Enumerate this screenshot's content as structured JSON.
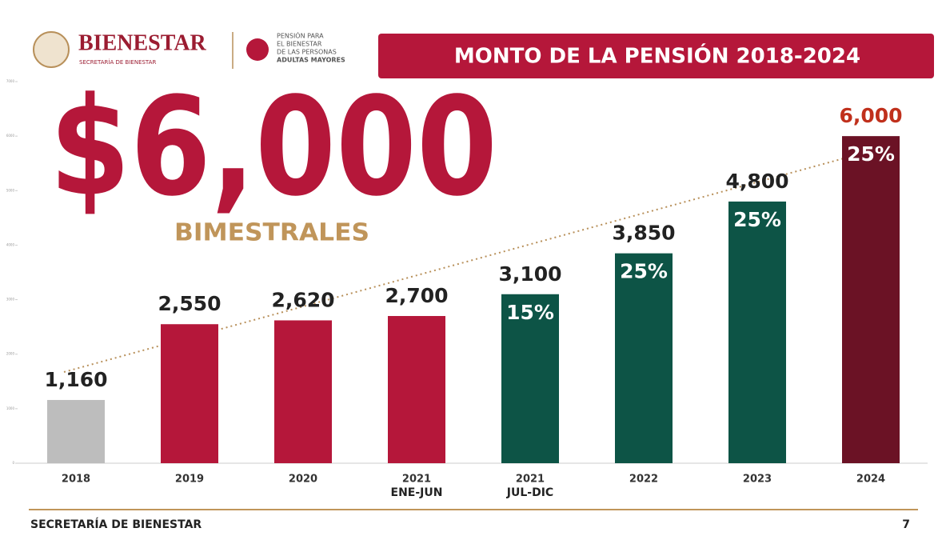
{
  "header": {
    "brand": "BIENESTAR",
    "brand_sub": "SECRETARÍA DE BIENESTAR",
    "program_lines": [
      "PENSIÓN PARA",
      "EL BIENESTAR",
      "DE LAS PERSONAS",
      "ADULTAS MAYORES"
    ]
  },
  "headline": {
    "amount": "$6,000",
    "period": "BIMESTRALES"
  },
  "footer": {
    "left": "SECRETARÍA DE BIENESTAR",
    "page": "7"
  },
  "chart_data": {
    "type": "bar",
    "title": "MONTO DE LA PENSIÓN 2018-2024",
    "categories": [
      "2018",
      "2019",
      "2020",
      "2021",
      "2021",
      "2022",
      "2023",
      "2024"
    ],
    "category_notes": [
      null,
      null,
      null,
      "ENE-JUN",
      "JUL-DIC",
      null,
      null,
      null
    ],
    "values": [
      1160,
      2550,
      2620,
      2700,
      3100,
      3850,
      4800,
      6000
    ],
    "value_labels": [
      "1,160",
      "2,550",
      "2,620",
      "2,700",
      "3,100",
      "3,850",
      "4,800",
      "6,000"
    ],
    "colors": [
      "#bdbdbd",
      "#b5173a",
      "#b5173a",
      "#b5173a",
      "#0d5446",
      "#0d5446",
      "#0d5446",
      "#6b1225"
    ],
    "label_colors": [
      "#222222",
      "#222222",
      "#222222",
      "#222222",
      "#222222",
      "#222222",
      "#222222",
      "#c0301c"
    ],
    "increase": {
      "values": [
        null,
        null,
        null,
        null,
        15,
        25,
        25,
        25
      ],
      "value_labels": [
        null,
        null,
        null,
        null,
        "15%",
        "25%",
        "25%",
        "25%"
      ]
    },
    "ylim": [
      0,
      7000
    ],
    "yticks": [
      0,
      1000,
      2000,
      3000,
      4000,
      5000,
      6000,
      7000
    ]
  }
}
